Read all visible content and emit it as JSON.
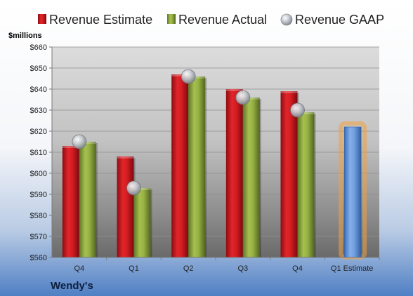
{
  "chart_data": {
    "type": "bar",
    "company": "Wendy's",
    "ylabel": "$millions",
    "ylim": [
      560,
      660
    ],
    "yticks": [
      560,
      570,
      580,
      590,
      600,
      610,
      620,
      630,
      640,
      650,
      660
    ],
    "ytick_prefix": "$",
    "grid": true,
    "legend_position": "top",
    "categories": [
      "Q4",
      "Q1",
      "Q2",
      "Q3",
      "Q4",
      "Q1 Estimate"
    ],
    "series": [
      {
        "name": "Revenue Estimate",
        "type": "bar",
        "color": "#c0141b",
        "values": [
          613,
          608,
          647,
          640,
          639,
          null
        ]
      },
      {
        "name": "Revenue Actual",
        "type": "bar",
        "color": "#8aa33c",
        "values": [
          615,
          593,
          646,
          636,
          629,
          null
        ]
      },
      {
        "name": "Revenue GAAP",
        "type": "marker",
        "color": "#b8bcc4",
        "values": [
          615,
          593,
          646,
          636,
          630,
          null
        ]
      },
      {
        "name": "Q1 Estimate",
        "type": "bar",
        "color": "#5b8fd6",
        "highlight": "#f0a040",
        "values": [
          null,
          null,
          null,
          null,
          null,
          622
        ]
      }
    ]
  }
}
